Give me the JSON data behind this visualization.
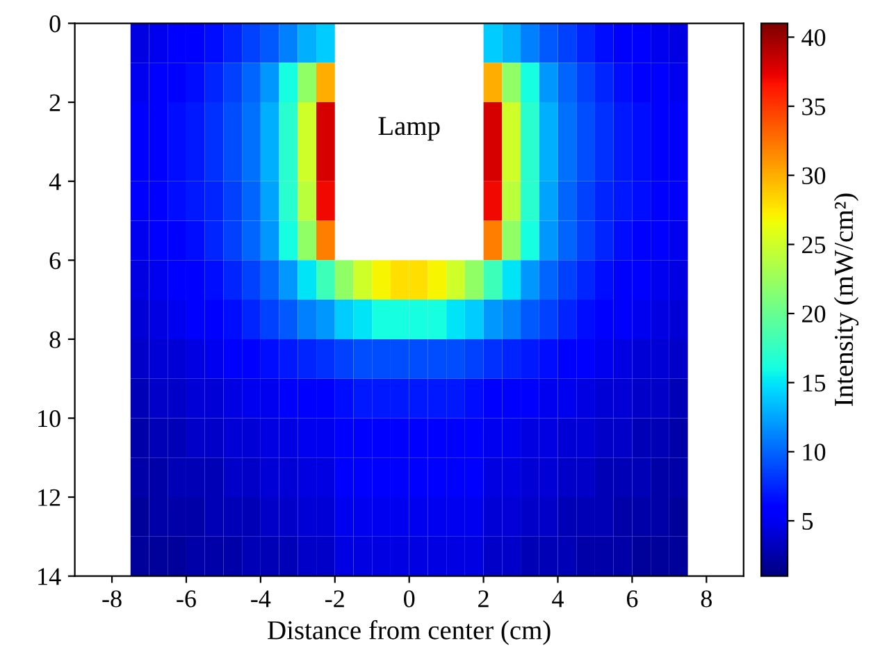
{
  "chart_data": {
    "type": "heatmap",
    "xlabel": "Distance from center (cm)",
    "clabel": "Intensity (mW/cm²)",
    "annotations": [
      "Lamp"
    ],
    "x": [
      -7.25,
      -6.75,
      -6.25,
      -5.75,
      -5.25,
      -4.75,
      -4.25,
      -3.75,
      -3.25,
      -2.75,
      -2.25,
      -1.75,
      -1.25,
      -0.75,
      -0.25,
      0.25,
      0.75,
      1.25,
      1.75,
      2.25,
      2.75,
      3.25,
      3.75,
      4.25,
      4.75,
      5.25,
      5.75,
      6.25,
      6.75,
      7.25
    ],
    "xlim": [
      -9,
      9
    ],
    "xticks": [
      -8,
      -6,
      -4,
      -2,
      0,
      2,
      4,
      6,
      8
    ],
    "ylim": [
      14,
      0
    ],
    "yticks": [
      0,
      2,
      4,
      6,
      8,
      10,
      12,
      14
    ],
    "clim": [
      1,
      41
    ],
    "cticks": [
      5,
      10,
      15,
      20,
      25,
      30,
      35,
      40
    ],
    "cells": [
      [
        4.5,
        5,
        5.5,
        6,
        6.5,
        7.5,
        8.5,
        9.5,
        11,
        13,
        14,
        null,
        null,
        null,
        null,
        null,
        null,
        null,
        null,
        14,
        13,
        11,
        9.5,
        8.5,
        7.5,
        6.5,
        6,
        5.5,
        5,
        4.5
      ],
      [
        5,
        5.5,
        6,
        6.5,
        7.5,
        8.5,
        10,
        12,
        16,
        22,
        30,
        null,
        null,
        null,
        null,
        null,
        null,
        null,
        null,
        30,
        22,
        16,
        12,
        10,
        8.5,
        7.5,
        6.5,
        6,
        5.5,
        5
      ],
      [
        5.5,
        6,
        6.5,
        7,
        8,
        9,
        10.5,
        13,
        17,
        25,
        38,
        null,
        null,
        null,
        null,
        null,
        null,
        null,
        null,
        38,
        25,
        17,
        13,
        10.5,
        9,
        8,
        7,
        6.5,
        6,
        5.5
      ],
      [
        5.5,
        6,
        6.5,
        7,
        8,
        9,
        10.5,
        13,
        17,
        25,
        38,
        null,
        null,
        null,
        null,
        null,
        null,
        null,
        null,
        38,
        25,
        17,
        13,
        10.5,
        9,
        8,
        7,
        6.5,
        6,
        5.5
      ],
      [
        5.5,
        6,
        6.5,
        7,
        7.5,
        8.5,
        10,
        12.5,
        17,
        24,
        37,
        null,
        null,
        null,
        null,
        null,
        null,
        null,
        null,
        37,
        24,
        17,
        12.5,
        10,
        8.5,
        7.5,
        7,
        6.5,
        6,
        5.5
      ],
      [
        5,
        5.5,
        6,
        6.5,
        7.5,
        8.5,
        10,
        12,
        16,
        22,
        32,
        null,
        null,
        null,
        null,
        null,
        null,
        null,
        null,
        32,
        22,
        16,
        12,
        10,
        8.5,
        7.5,
        6.5,
        6,
        5.5,
        5
      ],
      [
        4.5,
        5,
        5.5,
        6,
        6.5,
        7.5,
        8.5,
        10,
        12,
        15,
        18,
        22,
        25,
        27,
        28,
        28,
        27,
        25,
        22,
        18,
        15,
        12,
        10,
        8.5,
        7.5,
        6.5,
        6,
        5.5,
        5,
        4.5
      ],
      [
        4,
        4.5,
        5,
        5.5,
        6,
        6.5,
        7.5,
        8.5,
        9.5,
        11,
        12,
        14,
        15,
        16,
        16,
        16,
        16,
        15,
        14,
        12,
        11,
        9.5,
        8.5,
        7.5,
        6.5,
        6,
        5.5,
        5,
        4.5,
        4
      ],
      [
        3.5,
        4,
        4,
        4.5,
        5,
        5.5,
        6,
        6.5,
        7,
        7.5,
        8,
        8.5,
        9,
        9,
        9,
        9,
        9,
        9,
        8.5,
        8,
        7.5,
        7,
        6.5,
        6,
        5.5,
        5,
        4.5,
        4,
        4,
        3.5
      ],
      [
        3,
        3.5,
        3.5,
        4,
        4,
        4.5,
        5,
        5,
        5.5,
        5.5,
        6,
        6.5,
        7,
        7,
        7,
        7,
        7,
        7,
        6.5,
        6,
        5.5,
        5.5,
        5,
        5,
        4.5,
        4,
        4,
        3.5,
        3.5,
        3
      ],
      [
        2.5,
        3,
        3,
        3.5,
        3.5,
        4,
        4,
        4.5,
        4.5,
        5,
        5,
        6,
        6,
        6,
        6,
        6,
        6,
        6,
        6,
        5,
        5,
        4.5,
        4.5,
        4,
        4,
        3.5,
        3.5,
        3,
        3,
        2.5
      ],
      [
        2.5,
        2.5,
        3,
        3,
        3,
        3.5,
        3.5,
        4,
        4,
        4.5,
        4.5,
        5.5,
        5.5,
        5.5,
        5.5,
        5.5,
        5.5,
        5.5,
        5.5,
        4.5,
        4.5,
        4,
        4,
        3.5,
        3.5,
        3,
        3,
        3,
        2.5,
        2.5
      ],
      [
        2,
        2.5,
        2.5,
        2.5,
        3,
        3,
        3,
        3.5,
        3.5,
        4,
        4,
        5,
        5,
        5,
        5,
        5,
        5,
        5,
        5,
        4,
        4,
        3.5,
        3.5,
        3,
        3,
        3,
        2.5,
        2.5,
        2.5,
        2
      ],
      [
        2,
        2,
        2,
        2.5,
        2.5,
        2.5,
        3,
        3,
        3,
        3.5,
        3.5,
        4.5,
        4.5,
        4.5,
        4.5,
        4.5,
        4.5,
        4.5,
        4.5,
        3.5,
        3.5,
        3,
        3,
        3,
        2.5,
        2.5,
        2.5,
        2,
        2,
        2
      ]
    ]
  }
}
